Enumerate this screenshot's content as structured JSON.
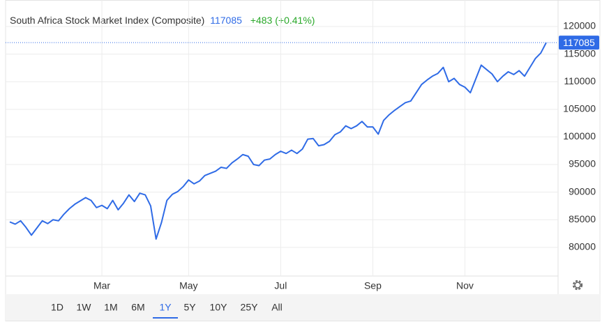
{
  "chart_data": {
    "type": "line",
    "title": "South Africa Stock Market Index (Composite)",
    "price": 117085,
    "change": "+483 (+0.41%)",
    "categories": [
      null,
      null,
      null,
      null,
      null,
      null,
      null,
      null,
      null,
      null,
      null,
      null,
      null,
      null,
      null,
      null,
      null,
      "Mar",
      null,
      null,
      null,
      null,
      null,
      null,
      null,
      null,
      null,
      null,
      null,
      null,
      null,
      null,
      null,
      "May",
      null,
      null,
      null,
      null,
      null,
      null,
      null,
      null,
      null,
      null,
      null,
      null,
      null,
      null,
      null,
      null,
      "Jul",
      null,
      null,
      null,
      null,
      null,
      null,
      null,
      null,
      null,
      null,
      null,
      null,
      null,
      null,
      null,
      null,
      "Sep",
      null,
      null,
      null,
      null,
      null,
      null,
      null,
      null,
      null,
      null,
      null,
      null,
      null,
      null,
      null,
      null,
      "Nov",
      null,
      null,
      null,
      null,
      null,
      null,
      null,
      null,
      null,
      null,
      null,
      null,
      null,
      null,
      null
    ],
    "series": [
      {
        "color": "#2f6be6",
        "values": [
          84600,
          84200,
          84800,
          83600,
          82200,
          83500,
          84800,
          84300,
          85000,
          84800,
          86000,
          87000,
          87800,
          88400,
          89000,
          88500,
          87200,
          87600,
          87000,
          88500,
          86800,
          88000,
          89500,
          88300,
          89800,
          89500,
          87500,
          81500,
          84500,
          88500,
          89600,
          90100,
          91000,
          92200,
          91500,
          92000,
          93000,
          93400,
          93800,
          94500,
          94300,
          95300,
          96000,
          96800,
          96500,
          95000,
          94800,
          95800,
          96000,
          96800,
          97400,
          97000,
          97600,
          97000,
          97800,
          99600,
          99700,
          98400,
          98600,
          99200,
          100400,
          100900,
          102000,
          101500,
          102000,
          102800,
          101800,
          101800,
          100500,
          103000,
          104000,
          104800,
          105500,
          106200,
          106500,
          108000,
          109500,
          110300,
          111000,
          111500,
          112600,
          110000,
          110600,
          109500,
          109000,
          108000,
          110500,
          113000,
          112200,
          111400,
          110000,
          111000,
          111800,
          111300,
          112000,
          111000,
          112600,
          114200,
          115200,
          117085
        ]
      }
    ],
    "ylim": [
      74800,
      124800
    ],
    "yticks": [
      80000,
      85000,
      90000,
      95000,
      100000,
      105000,
      110000,
      115000,
      120000
    ],
    "grid": true,
    "ranges": [
      "1D",
      "1W",
      "1M",
      "6M",
      "1Y",
      "5Y",
      "10Y",
      "25Y",
      "All"
    ],
    "active_range": "1Y"
  }
}
